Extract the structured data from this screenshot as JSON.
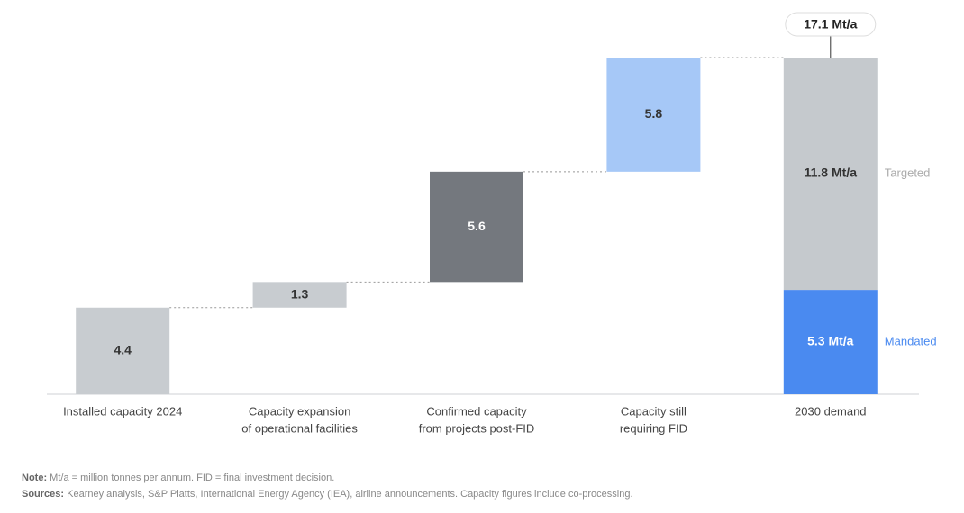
{
  "chart_data": {
    "type": "waterfall",
    "categories": [
      [
        "Installed capacity 2024"
      ],
      [
        "Capacity expansion",
        "of operational facilities"
      ],
      [
        "Confirmed capacity",
        "from projects post-FID"
      ],
      [
        "Capacity still",
        "requiring FID"
      ],
      [
        "2030 demand"
      ]
    ],
    "values": [
      4.4,
      1.3,
      5.6,
      5.8,
      null
    ],
    "colors": [
      "#c8ccd0",
      "#c8ccd0",
      "#74787e",
      "#a6c8f7"
    ],
    "series": [
      {
        "name": "Mandated",
        "color": "#4a8af0",
        "values": [
          null,
          null,
          null,
          null,
          5.3
        ],
        "value_labels": [
          null,
          null,
          null,
          null,
          "5.3 Mt/a"
        ]
      },
      {
        "name": "Targeted",
        "color": "#c5c9cd",
        "values": [
          null,
          null,
          null,
          null,
          11.8
        ],
        "value_labels": [
          null,
          null,
          null,
          null,
          "11.8 Mt/a"
        ]
      }
    ],
    "total": 17.1,
    "total_label": "17.1 Mt/a",
    "note_label": "Note:",
    "note": "Mt/a = million tonnes per annum. FID = final investment decision.",
    "sources_label": "Sources:",
    "sources": "Kearney analysis, S&P Platts, International Energy Agency (IEA), airline announcements. Capacity figures include co-processing."
  }
}
